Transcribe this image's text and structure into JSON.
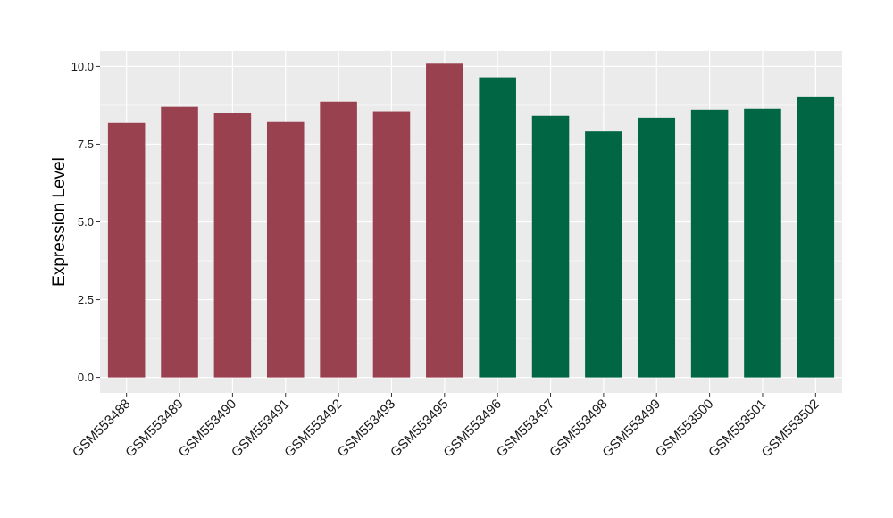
{
  "chart_data": {
    "type": "bar",
    "ylabel": "Expression Level",
    "xlabel": "",
    "ylim": [
      -0.5,
      10.5
    ],
    "yticks": [
      0.0,
      2.5,
      5.0,
      7.5,
      10.0
    ],
    "ytick_labels": [
      "0.0",
      "2.5",
      "5.0",
      "7.5",
      "10.0"
    ],
    "grid": true,
    "categories": [
      "GSM553488",
      "GSM553489",
      "GSM553490",
      "GSM553491",
      "GSM553492",
      "GSM553493",
      "GSM553495",
      "GSM553496",
      "GSM553497",
      "GSM553498",
      "GSM553499",
      "GSM553500",
      "GSM553501",
      "GSM553502"
    ],
    "values": [
      8.18,
      8.7,
      8.5,
      8.21,
      8.87,
      8.56,
      10.09,
      9.65,
      8.41,
      7.91,
      8.35,
      8.61,
      8.64,
      9.01
    ],
    "bar_colors": [
      "#9a4150",
      "#9a4150",
      "#9a4150",
      "#9a4150",
      "#9a4150",
      "#9a4150",
      "#9a4150",
      "#006644",
      "#006644",
      "#006644",
      "#006644",
      "#006644",
      "#006644",
      "#006644"
    ],
    "panel_background": "#ebebeb",
    "grid_color": "#ffffff"
  }
}
